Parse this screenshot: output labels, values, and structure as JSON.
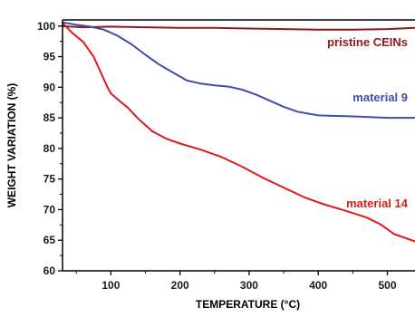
{
  "chart_data": {
    "type": "line",
    "title": "",
    "xlabel": "TEMPERATURE (°C)",
    "ylabel": "WEIGHT VARIATION (%)",
    "xlim": [
      30,
      540
    ],
    "ylim": [
      60,
      101
    ],
    "xticks": [
      100,
      200,
      300,
      400,
      500
    ],
    "yticks": [
      60,
      65,
      70,
      75,
      80,
      85,
      90,
      95,
      100
    ],
    "grid": false,
    "legend": "inline labels",
    "series": [
      {
        "name": "pristine CEINs",
        "color": "#8b1a1a",
        "x": [
          30,
          40,
          60,
          100,
          150,
          200,
          250,
          300,
          350,
          400,
          450,
          500,
          540
        ],
        "y": [
          100.0,
          99.9,
          99.8,
          99.9,
          99.8,
          99.7,
          99.7,
          99.6,
          99.5,
          99.4,
          99.4,
          99.5,
          99.7
        ]
      },
      {
        "name": "material 9",
        "color": "#3b4fb0",
        "x": [
          30,
          50,
          70,
          90,
          110,
          130,
          150,
          170,
          190,
          210,
          230,
          250,
          270,
          290,
          310,
          330,
          350,
          370,
          400,
          430,
          460,
          500,
          540
        ],
        "y": [
          100.6,
          100.2,
          99.9,
          99.4,
          98.4,
          97.0,
          95.3,
          93.7,
          92.4,
          91.1,
          90.6,
          90.3,
          90.1,
          89.6,
          88.8,
          87.8,
          86.8,
          86.0,
          85.4,
          85.3,
          85.2,
          85.0,
          85.0
        ]
      },
      {
        "name": "material 14",
        "color": "#e01a1a",
        "x": [
          30,
          45,
          60,
          75,
          85,
          95,
          100,
          110,
          125,
          140,
          160,
          180,
          200,
          230,
          260,
          290,
          320,
          350,
          380,
          410,
          440,
          470,
          490,
          500,
          510,
          525,
          540
        ],
        "y": [
          100.5,
          98.8,
          97.4,
          95.0,
          92.5,
          90.0,
          89.0,
          88.0,
          86.6,
          84.8,
          82.8,
          81.6,
          80.8,
          79.8,
          78.6,
          77.0,
          75.2,
          73.6,
          72.0,
          70.8,
          69.8,
          68.7,
          67.6,
          66.8,
          66.0,
          65.4,
          64.8
        ]
      }
    ]
  }
}
